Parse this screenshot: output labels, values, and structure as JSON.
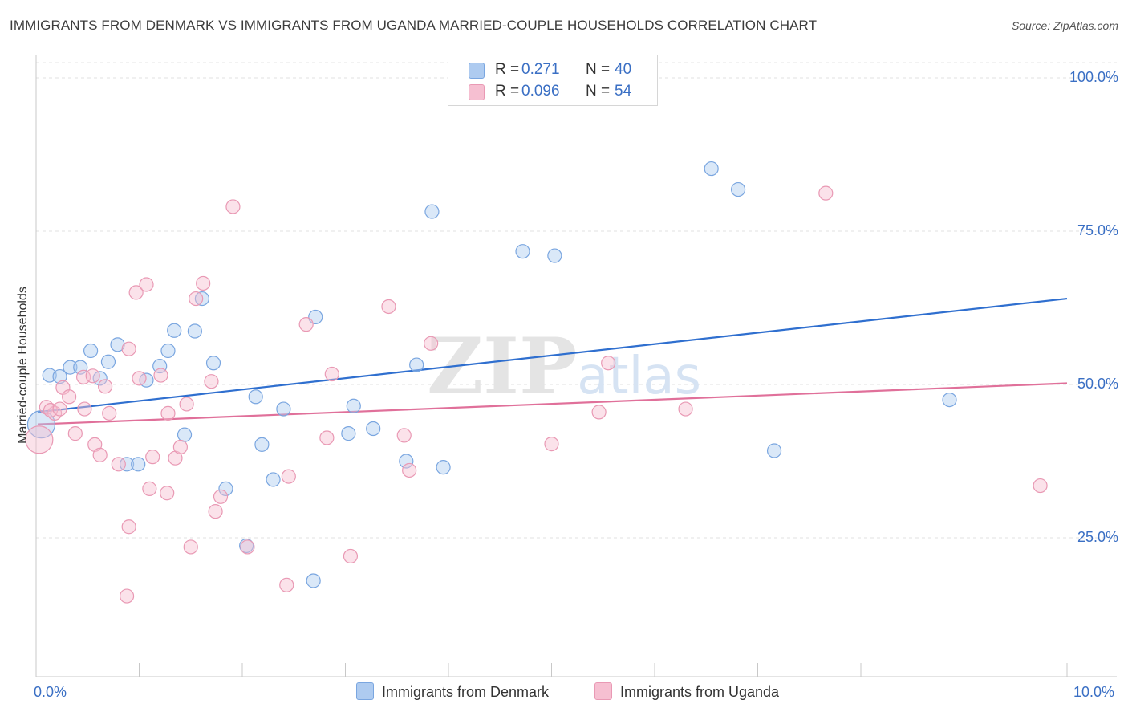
{
  "title": "IMMIGRANTS FROM DENMARK VS IMMIGRANTS FROM UGANDA MARRIED-COUPLE HOUSEHOLDS CORRELATION CHART",
  "source": "Source: ZipAtlas.com",
  "watermark": "ZIPatlas",
  "colors": {
    "denmark_fill": "#aecbf0",
    "denmark_stroke": "#7aa6e0",
    "denmark_line": "#2f6fcf",
    "uganda_fill": "#f6bfd1",
    "uganda_stroke": "#e999b4",
    "uganda_line": "#e0709a",
    "accent_text": "#3a6fc4"
  },
  "legend": {
    "rows": [
      {
        "r_label": "R =",
        "r_value": "0.271",
        "n_label": "N =",
        "n_value": "40"
      },
      {
        "r_label": "R =",
        "r_value": "0.096",
        "n_label": "N =",
        "n_value": "54"
      }
    ]
  },
  "chart_data": {
    "type": "scatter",
    "title": "IMMIGRANTS FROM DENMARK VS IMMIGRANTS FROM UGANDA MARRIED-COUPLE HOUSEHOLDS CORRELATION CHART",
    "xlabel": "",
    "ylabel": "Married-couple Households",
    "xlim": [
      0,
      10
    ],
    "ylim": [
      0,
      105
    ],
    "x_tick_labels": [
      "0.0%",
      "10.0%"
    ],
    "y_tick_labels": [
      "100.0%",
      "75.0%",
      "50.0%",
      "25.0%"
    ],
    "y_ticks": [
      100,
      75,
      50,
      25
    ],
    "grid": true,
    "legend_position": "bottom",
    "series": [
      {
        "name": "Immigrants from Denmark",
        "r": 0.271,
        "n": 40,
        "trend": {
          "x": [
            0,
            10
          ],
          "y": [
            45.5,
            64
          ]
        },
        "points": [
          {
            "x": 0.05,
            "y": 43.5,
            "big": true
          },
          {
            "x": 0.13,
            "y": 51.5
          },
          {
            "x": 0.23,
            "y": 51.3
          },
          {
            "x": 0.33,
            "y": 52.8
          },
          {
            "x": 0.43,
            "y": 52.8
          },
          {
            "x": 0.53,
            "y": 55.5
          },
          {
            "x": 0.62,
            "y": 51.0
          },
          {
            "x": 0.7,
            "y": 53.7
          },
          {
            "x": 0.79,
            "y": 56.5
          },
          {
            "x": 0.88,
            "y": 37.0
          },
          {
            "x": 0.99,
            "y": 37.0
          },
          {
            "x": 1.07,
            "y": 50.7
          },
          {
            "x": 1.2,
            "y": 53.0
          },
          {
            "x": 1.28,
            "y": 55.5
          },
          {
            "x": 1.34,
            "y": 58.8
          },
          {
            "x": 1.44,
            "y": 41.8
          },
          {
            "x": 1.54,
            "y": 58.7
          },
          {
            "x": 1.61,
            "y": 64.0
          },
          {
            "x": 1.72,
            "y": 53.5
          },
          {
            "x": 1.84,
            "y": 33.0
          },
          {
            "x": 2.04,
            "y": 23.7
          },
          {
            "x": 2.13,
            "y": 48.0
          },
          {
            "x": 2.19,
            "y": 40.2
          },
          {
            "x": 2.3,
            "y": 34.5
          },
          {
            "x": 2.4,
            "y": 46.0
          },
          {
            "x": 2.71,
            "y": 61.0
          },
          {
            "x": 2.69,
            "y": 18.0
          },
          {
            "x": 3.03,
            "y": 42.0
          },
          {
            "x": 3.08,
            "y": 46.5
          },
          {
            "x": 3.27,
            "y": 42.8
          },
          {
            "x": 3.69,
            "y": 53.2
          },
          {
            "x": 3.59,
            "y": 37.5
          },
          {
            "x": 3.84,
            "y": 78.2
          },
          {
            "x": 3.95,
            "y": 36.5
          },
          {
            "x": 4.72,
            "y": 71.7
          },
          {
            "x": 5.03,
            "y": 71.0
          },
          {
            "x": 6.55,
            "y": 85.2
          },
          {
            "x": 6.81,
            "y": 81.8
          },
          {
            "x": 7.16,
            "y": 39.2
          },
          {
            "x": 8.86,
            "y": 47.5
          }
        ]
      },
      {
        "name": "Immigrants from Uganda",
        "r": 0.096,
        "n": 54,
        "trend": {
          "x": [
            0,
            10
          ],
          "y": [
            43.5,
            50.2
          ]
        },
        "points": [
          {
            "x": 0.03,
            "y": 41.0,
            "big": true
          },
          {
            "x": 0.1,
            "y": 46.3
          },
          {
            "x": 0.18,
            "y": 45.3
          },
          {
            "x": 0.26,
            "y": 49.5
          },
          {
            "x": 0.32,
            "y": 48.0
          },
          {
            "x": 0.38,
            "y": 42.0
          },
          {
            "x": 0.46,
            "y": 51.2
          },
          {
            "x": 0.47,
            "y": 46.0
          },
          {
            "x": 0.55,
            "y": 51.4
          },
          {
            "x": 0.57,
            "y": 40.2
          },
          {
            "x": 0.62,
            "y": 38.5
          },
          {
            "x": 0.67,
            "y": 49.7
          },
          {
            "x": 0.71,
            "y": 45.3
          },
          {
            "x": 0.8,
            "y": 37.0
          },
          {
            "x": 0.9,
            "y": 55.8
          },
          {
            "x": 0.9,
            "y": 26.8
          },
          {
            "x": 0.88,
            "y": 15.5
          },
          {
            "x": 0.97,
            "y": 65.0
          },
          {
            "x": 1.0,
            "y": 51.0
          },
          {
            "x": 1.07,
            "y": 66.3
          },
          {
            "x": 1.1,
            "y": 33.0
          },
          {
            "x": 1.13,
            "y": 38.2
          },
          {
            "x": 1.21,
            "y": 51.5
          },
          {
            "x": 1.28,
            "y": 45.3
          },
          {
            "x": 1.27,
            "y": 32.3
          },
          {
            "x": 1.35,
            "y": 38.0
          },
          {
            "x": 1.4,
            "y": 39.8
          },
          {
            "x": 1.46,
            "y": 46.8
          },
          {
            "x": 1.5,
            "y": 23.5
          },
          {
            "x": 1.55,
            "y": 64.0
          },
          {
            "x": 1.62,
            "y": 66.5
          },
          {
            "x": 1.7,
            "y": 50.5
          },
          {
            "x": 1.74,
            "y": 29.3
          },
          {
            "x": 1.79,
            "y": 31.7
          },
          {
            "x": 1.91,
            "y": 79.0
          },
          {
            "x": 2.05,
            "y": 23.5
          },
          {
            "x": 2.43,
            "y": 17.3
          },
          {
            "x": 2.45,
            "y": 35.0
          },
          {
            "x": 2.62,
            "y": 59.8
          },
          {
            "x": 2.82,
            "y": 41.3
          },
          {
            "x": 2.87,
            "y": 51.7
          },
          {
            "x": 3.05,
            "y": 22.0
          },
          {
            "x": 3.42,
            "y": 62.7
          },
          {
            "x": 3.57,
            "y": 41.7
          },
          {
            "x": 3.62,
            "y": 36.0
          },
          {
            "x": 3.83,
            "y": 56.7
          },
          {
            "x": 5.0,
            "y": 40.3
          },
          {
            "x": 5.46,
            "y": 45.5
          },
          {
            "x": 5.55,
            "y": 53.5
          },
          {
            "x": 6.3,
            "y": 46.0
          },
          {
            "x": 7.66,
            "y": 81.2
          },
          {
            "x": 9.74,
            "y": 33.5
          },
          {
            "x": 0.14,
            "y": 45.8
          },
          {
            "x": 0.23,
            "y": 46.0
          }
        ]
      }
    ]
  }
}
